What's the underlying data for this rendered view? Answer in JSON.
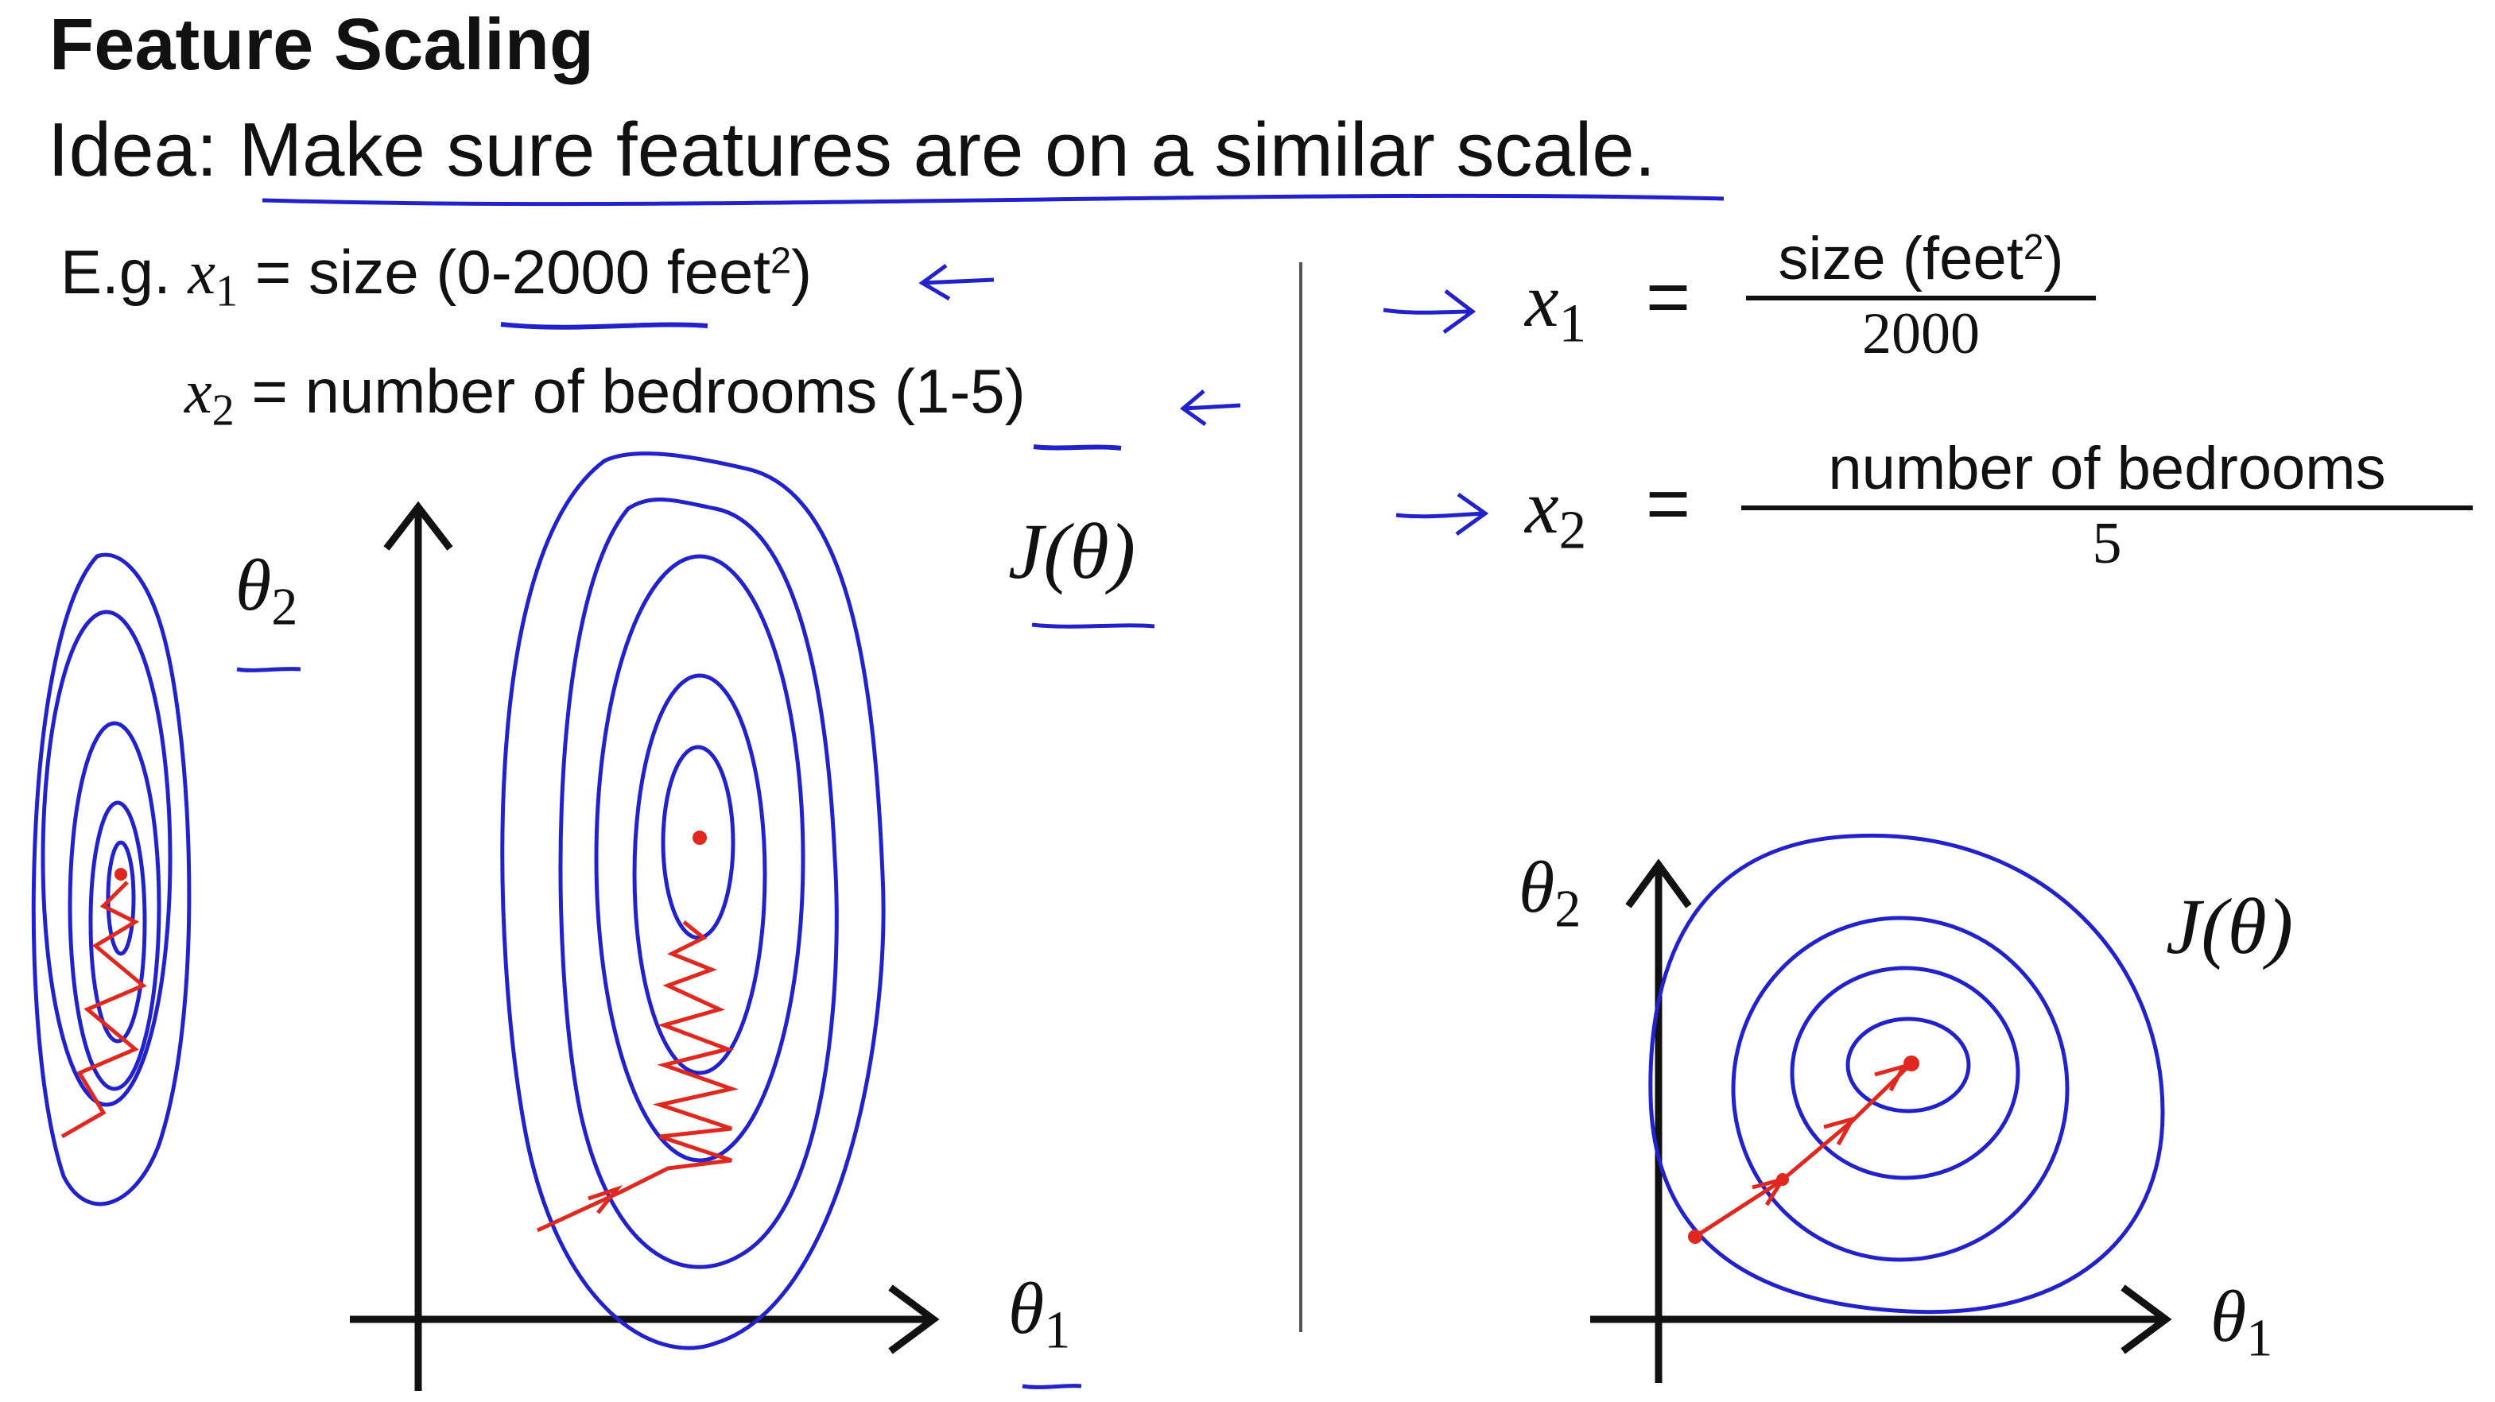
{
  "header": {
    "title": "Feature Scaling",
    "idea_prefix": "Idea: ",
    "idea_text": "Make sure features are on a similar scale."
  },
  "example": {
    "prefix": "E.g. ",
    "x1_var": "x",
    "x1_sub": "1",
    "x1_desc_pre": " = size (",
    "x1_range": "0-2000",
    "x1_unit": " feet",
    "x1_unit_sup": "2",
    "x1_desc_post": ")",
    "x2_var": "x",
    "x2_sub": "2",
    "x2_desc_pre": " = number of bedrooms (",
    "x2_range": "1-5",
    "x2_desc_post": ")"
  },
  "formulas": {
    "f1": {
      "var": "x",
      "sub": "1",
      "eq": "=",
      "numerator_pre": "size (feet",
      "numerator_sup": "2",
      "numerator_post": ")",
      "denominator": "2000"
    },
    "f2": {
      "var": "x",
      "sub": "2",
      "eq": "=",
      "numerator": "number of bedrooms",
      "denominator": "5"
    }
  },
  "left_plot": {
    "y_label": "θ",
    "y_label_sub": "2",
    "x_label": "θ",
    "x_label_sub": "1",
    "cost_label": "J(θ)"
  },
  "right_plot": {
    "y_label": "θ",
    "y_label_sub": "2",
    "x_label": "θ",
    "x_label_sub": "1",
    "cost_label": "J(θ)"
  },
  "colors": {
    "contour": "#2222cc",
    "path": "#e0281e",
    "ink": "#111111",
    "divider": "#555555"
  }
}
